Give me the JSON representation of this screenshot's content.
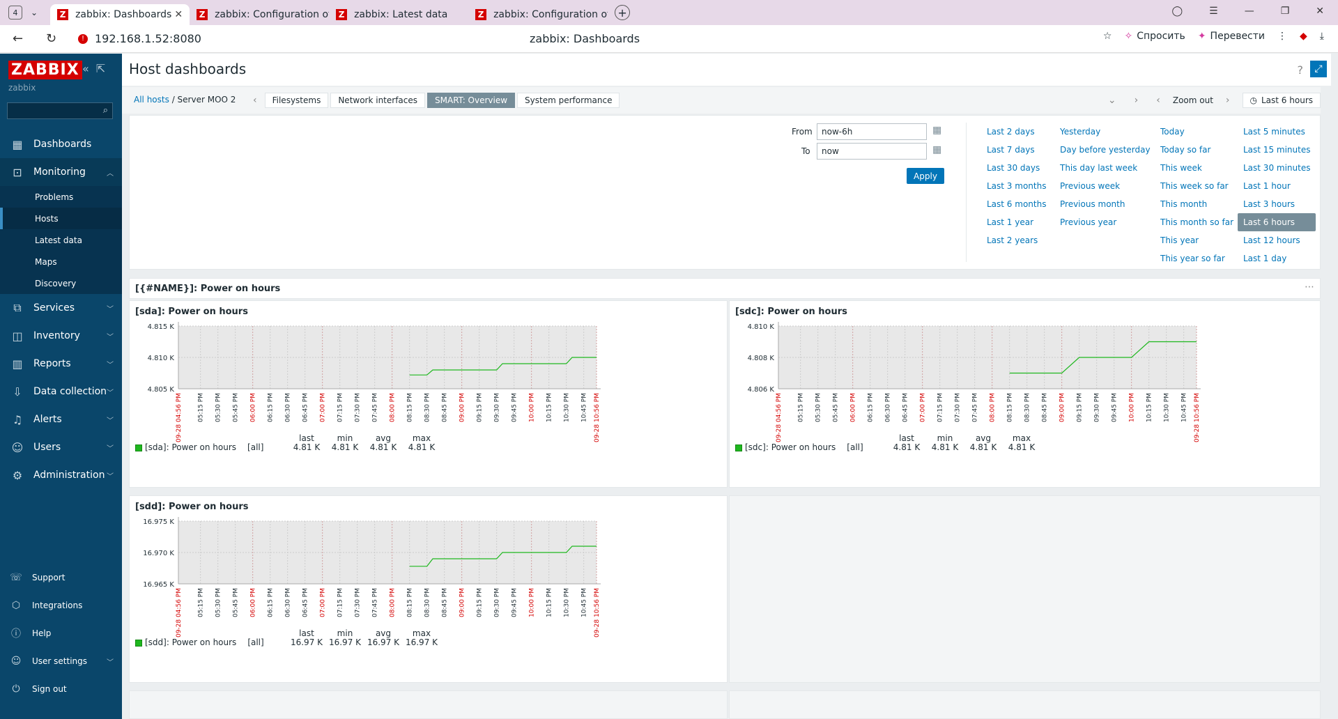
{
  "browser": {
    "tab_count": "4",
    "tabs": [
      {
        "title": "zabbix: Dashboards"
      },
      {
        "title": "zabbix: Configuration of ho"
      },
      {
        "title": "zabbix: Latest data"
      },
      {
        "title": "zabbix: Configuration of ite"
      }
    ],
    "url": "192.168.1.52:8080",
    "page_title": "zabbix: Dashboards",
    "ask_label": "Спросить",
    "translate_label": "Перевести"
  },
  "sidebar": {
    "logo": "ZABBIX",
    "subtitle": "zabbix",
    "menu": [
      {
        "label": "Dashboards",
        "icon": "dashboard-icon"
      },
      {
        "label": "Monitoring",
        "icon": "monitoring-icon"
      },
      {
        "label": "Services",
        "icon": "services-icon"
      },
      {
        "label": "Inventory",
        "icon": "inventory-icon"
      },
      {
        "label": "Reports",
        "icon": "reports-icon"
      },
      {
        "label": "Data collection",
        "icon": "data-collection-icon"
      },
      {
        "label": "Alerts",
        "icon": "alerts-icon"
      },
      {
        "label": "Users",
        "icon": "users-icon"
      },
      {
        "label": "Administration",
        "icon": "administration-icon"
      }
    ],
    "monitoring_sub": [
      "Problems",
      "Hosts",
      "Latest data",
      "Maps",
      "Discovery"
    ],
    "bottom": [
      {
        "label": "Support"
      },
      {
        "label": "Integrations"
      },
      {
        "label": "Help"
      },
      {
        "label": "User settings"
      },
      {
        "label": "Sign out"
      }
    ]
  },
  "header": {
    "title": "Host dashboards",
    "help": "?"
  },
  "breadcrumb": {
    "all_hosts": "All hosts",
    "host": "Server MOO 2"
  },
  "dashboard_tabs": [
    "Filesystems",
    "Network interfaces",
    "SMART: Overview",
    "System performance"
  ],
  "time_controls": {
    "zoom_out": "Zoom out",
    "range": "Last 6 hours"
  },
  "filter": {
    "from_label": "From",
    "from_value": "now-6h",
    "to_label": "To",
    "to_value": "now",
    "apply": "Apply",
    "col1": [
      "Last 2 days",
      "Last 7 days",
      "Last 30 days",
      "Last 3 months",
      "Last 6 months",
      "Last 1 year",
      "Last 2 years"
    ],
    "col2": [
      "Yesterday",
      "Day before yesterday",
      "This day last week",
      "Previous week",
      "Previous month",
      "Previous year"
    ],
    "col3": [
      "Today",
      "Today so far",
      "This week",
      "This week so far",
      "This month",
      "This month so far",
      "This year",
      "This year so far"
    ],
    "col4": [
      "Last 5 minutes",
      "Last 15 minutes",
      "Last 30 minutes",
      "Last 1 hour",
      "Last 3 hours",
      "Last 6 hours",
      "Last 12 hours",
      "Last 1 day"
    ]
  },
  "widget": {
    "title": "[{#NAME}]: Power on hours"
  },
  "graph_ticks": [
    "09-28 04:56 PM",
    "05:15 PM",
    "05:30 PM",
    "05:45 PM",
    "06:00 PM",
    "06:15 PM",
    "06:30 PM",
    "06:45 PM",
    "07:00 PM",
    "07:15 PM",
    "07:30 PM",
    "07:45 PM",
    "08:00 PM",
    "08:15 PM",
    "08:30 PM",
    "08:45 PM",
    "09:00 PM",
    "09:15 PM",
    "09:30 PM",
    "09:45 PM",
    "10:00 PM",
    "10:15 PM",
    "10:30 PM",
    "10:45 PM",
    "09-28 10:56 PM"
  ],
  "stat_headers": {
    "last": "last",
    "min": "min",
    "avg": "avg",
    "max": "max"
  },
  "chart_data": [
    {
      "type": "line",
      "title": "[sda]: Power on hours",
      "yticks": [
        "4.815 K",
        "4.810 K",
        "4.805 K"
      ],
      "ylim": [
        4.805,
        4.815
      ],
      "series": [
        {
          "name": "[sda]: Power on hours",
          "color": "#1eb71e",
          "points": [
            [
              "08:15 PM",
              4.8072
            ],
            [
              "08:30 PM",
              4.8072
            ],
            [
              "08:35 PM",
              4.808
            ],
            [
              "09:30 PM",
              4.808
            ],
            [
              "09:35 PM",
              4.809
            ],
            [
              "10:30 PM",
              4.809
            ],
            [
              "10:35 PM",
              4.81
            ],
            [
              "10:56 PM",
              4.81
            ]
          ]
        }
      ],
      "legend": {
        "label": "[sda]: Power on hours",
        "func": "[all]",
        "last": "4.81 K",
        "min": "4.81 K",
        "avg": "4.81 K",
        "max": "4.81 K"
      }
    },
    {
      "type": "line",
      "title": "[sdc]: Power on hours",
      "yticks": [
        "4.810 K",
        "4.808 K",
        "4.806 K"
      ],
      "ylim": [
        4.806,
        4.81
      ],
      "series": [
        {
          "name": "[sdc]: Power on hours",
          "color": "#1eb71e",
          "points": [
            [
              "08:15 PM",
              4.807
            ],
            [
              "09:00 PM",
              4.807
            ],
            [
              "09:15 PM",
              4.808
            ],
            [
              "10:00 PM",
              4.808
            ],
            [
              "10:15 PM",
              4.809
            ],
            [
              "10:56 PM",
              4.809
            ]
          ]
        }
      ],
      "legend": {
        "label": "[sdc]: Power on hours",
        "func": "[all]",
        "last": "4.81 K",
        "min": "4.81 K",
        "avg": "4.81 K",
        "max": "4.81 K"
      }
    },
    {
      "type": "line",
      "title": "[sdd]: Power on hours",
      "yticks": [
        "16.975 K",
        "16.970 K",
        "16.965 K"
      ],
      "ylim": [
        16.965,
        16.975
      ],
      "series": [
        {
          "name": "[sdd]: Power on hours",
          "color": "#1eb71e",
          "points": [
            [
              "08:15 PM",
              16.9678
            ],
            [
              "08:30 PM",
              16.9678
            ],
            [
              "08:35 PM",
              16.969
            ],
            [
              "09:30 PM",
              16.969
            ],
            [
              "09:35 PM",
              16.97
            ],
            [
              "10:30 PM",
              16.97
            ],
            [
              "10:35 PM",
              16.971
            ],
            [
              "10:56 PM",
              16.971
            ]
          ]
        }
      ],
      "legend": {
        "label": "[sdd]: Power on hours",
        "func": "[all]",
        "last": "16.97 K",
        "min": "16.97 K",
        "avg": "16.97 K",
        "max": "16.97 K"
      }
    }
  ]
}
